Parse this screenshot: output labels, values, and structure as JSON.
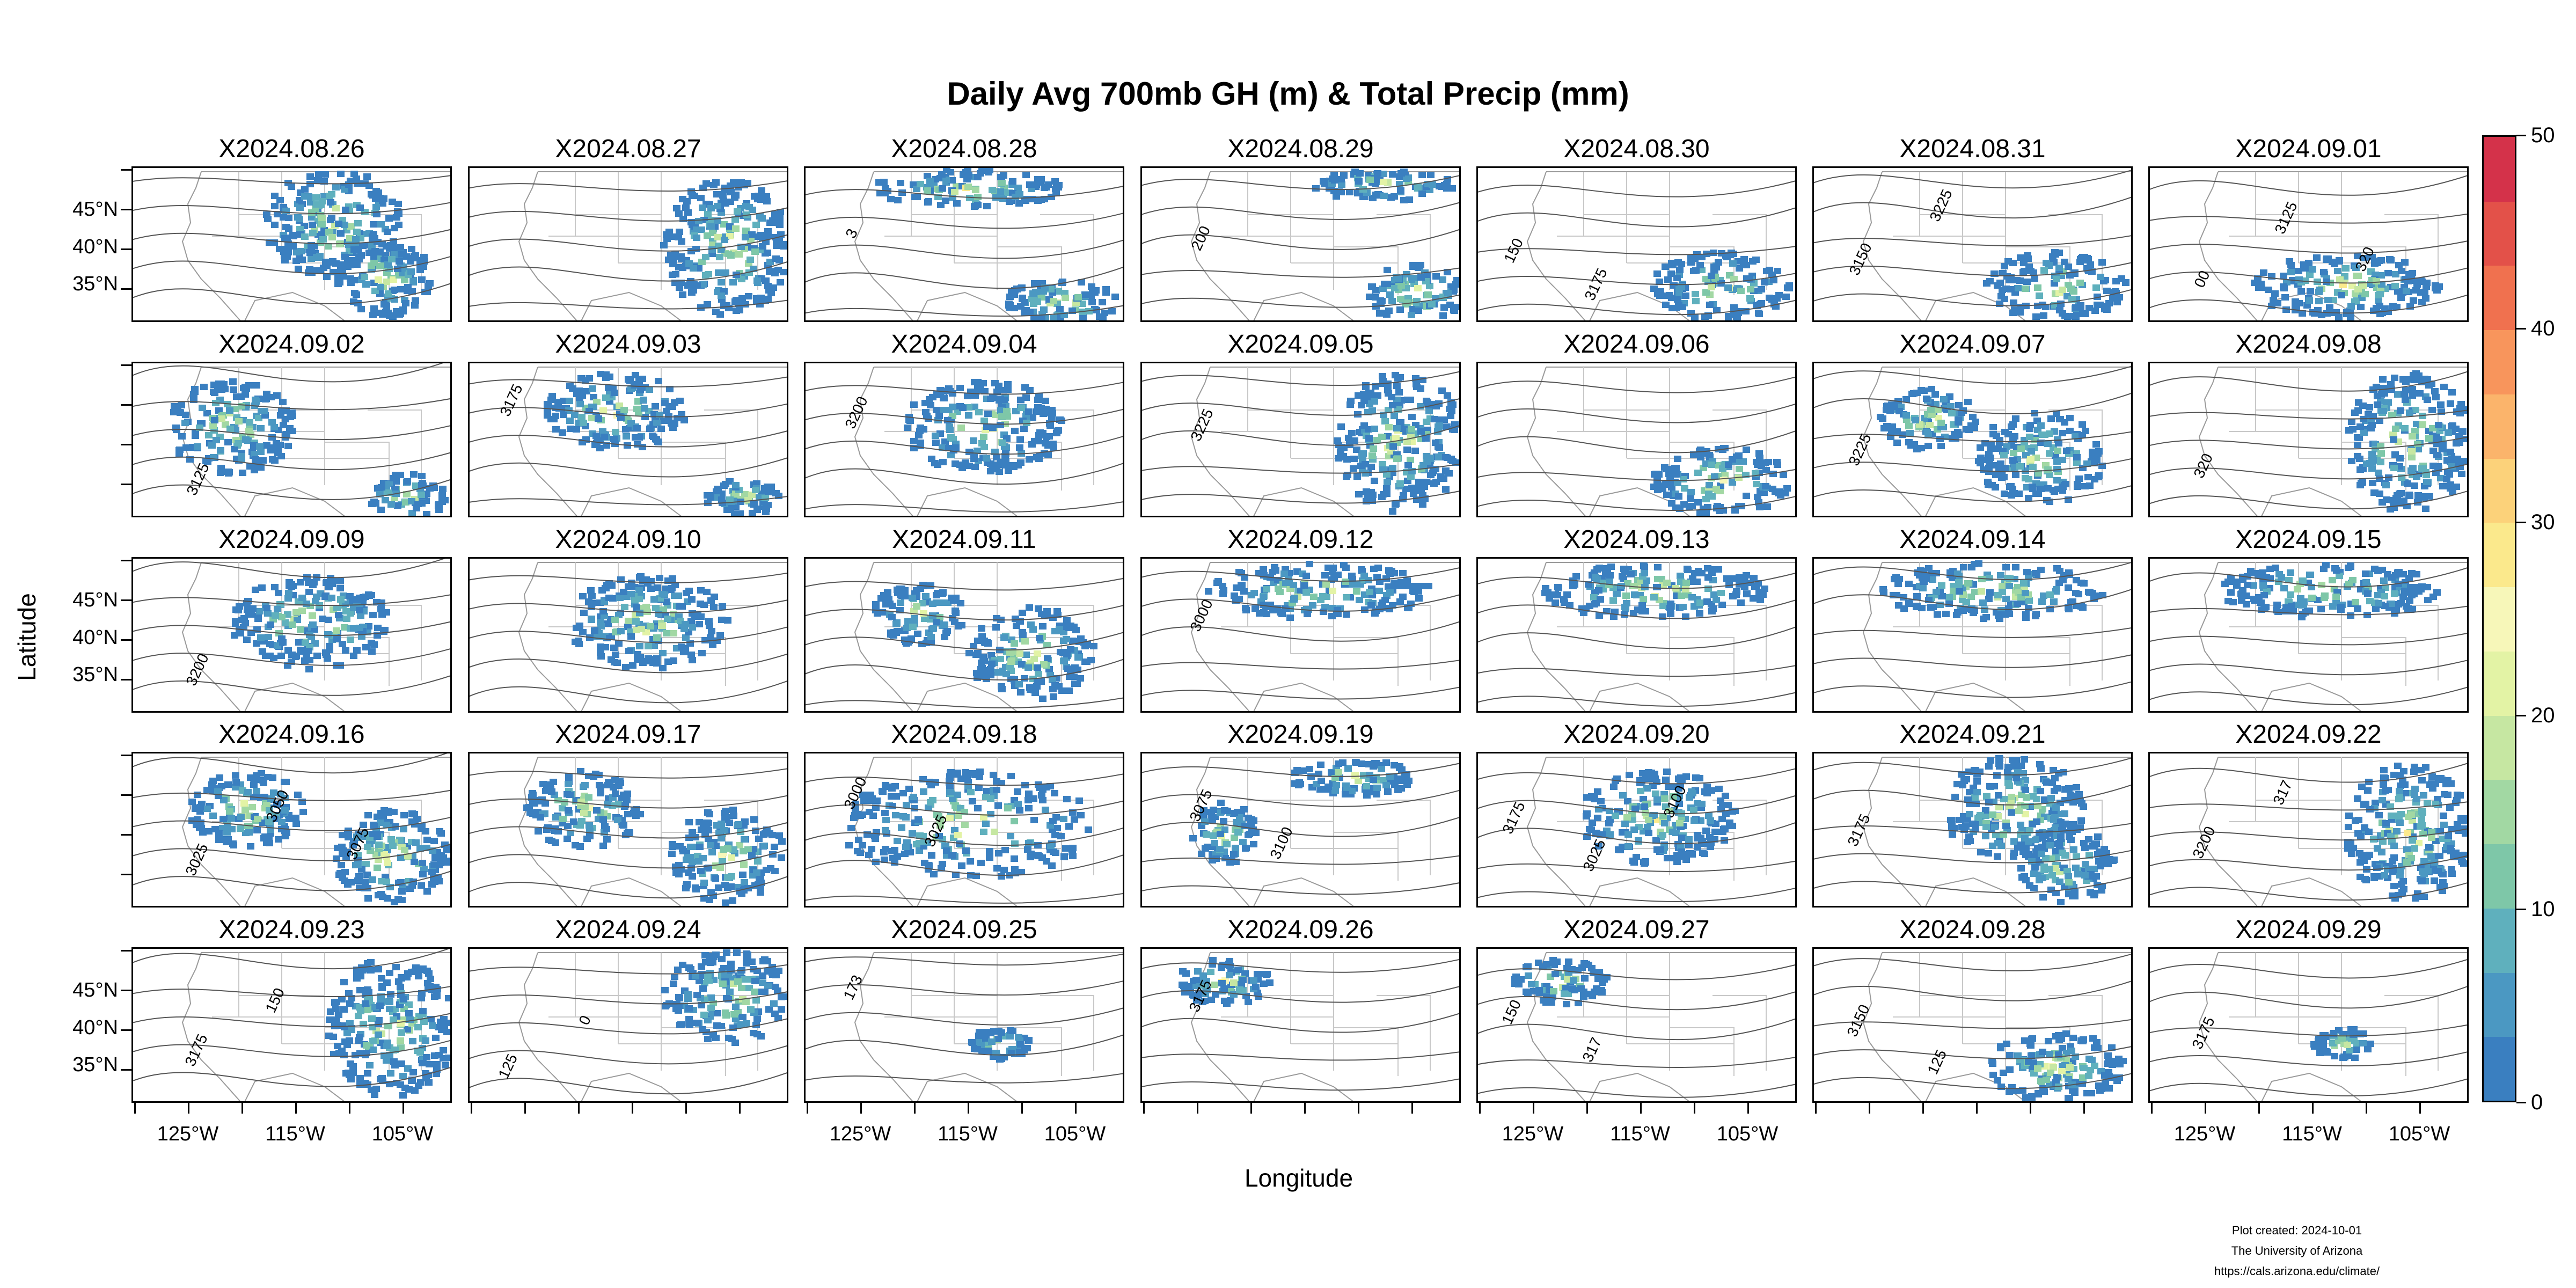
{
  "title": "Daily Avg 700mb GH (m) & Total Precip (mm)",
  "axis_titles": {
    "x": "Longitude",
    "y": "Latitude"
  },
  "lat_labels": [
    "45°N",
    "40°N",
    "35°N"
  ],
  "lon_labels": [
    "125°W",
    "115°W",
    "105°W"
  ],
  "colorbar": {
    "labels": [
      "0",
      "10",
      "20",
      "30",
      "40",
      "50"
    ],
    "range": [
      0,
      50
    ],
    "colors": [
      "#3a7fc0",
      "#4b98c2",
      "#5fb0bd",
      "#7ec7a8",
      "#a2d8a3",
      "#c6e7a2",
      "#e3f3a5",
      "#f7f7b9",
      "#fbe98c",
      "#fcd27a",
      "#fbb46b",
      "#f8955c",
      "#f0714f",
      "#e35149",
      "#d4324a"
    ]
  },
  "panels": [
    {
      "date": "X2024.08.26",
      "contours": [],
      "precip": "central-east"
    },
    {
      "date": "X2024.08.27",
      "contours": [],
      "precip": "east"
    },
    {
      "date": "X2024.08.28",
      "contours": [
        "3"
      ],
      "precip": "north-south"
    },
    {
      "date": "X2024.08.29",
      "contours": [
        "200"
      ],
      "precip": "north-southeast"
    },
    {
      "date": "X2024.08.30",
      "contours": [
        "150",
        "3175"
      ],
      "precip": "southeast"
    },
    {
      "date": "X2024.08.31",
      "contours": [
        "3150",
        "3225"
      ],
      "precip": "southeast"
    },
    {
      "date": "X2024.09.01",
      "contours": [
        "00",
        "3125",
        "320"
      ],
      "precip": "south"
    },
    {
      "date": "X2024.09.02",
      "contours": [
        "3125"
      ],
      "precip": "west-south"
    },
    {
      "date": "X2024.09.03",
      "contours": [
        "3175"
      ],
      "precip": "north-central"
    },
    {
      "date": "X2024.09.04",
      "contours": [
        "3200"
      ],
      "precip": "central"
    },
    {
      "date": "X2024.09.05",
      "contours": [
        "3225"
      ],
      "precip": "east"
    },
    {
      "date": "X2024.09.06",
      "contours": [],
      "precip": "southeast"
    },
    {
      "date": "X2024.09.07",
      "contours": [
        "3225"
      ],
      "precip": "scattered"
    },
    {
      "date": "X2024.09.08",
      "contours": [
        "320"
      ],
      "precip": "east"
    },
    {
      "date": "X2024.09.09",
      "contours": [
        "3200"
      ],
      "precip": "central"
    },
    {
      "date": "X2024.09.10",
      "contours": [],
      "precip": "central"
    },
    {
      "date": "X2024.09.11",
      "contours": [],
      "precip": "scattered"
    },
    {
      "date": "X2024.09.12",
      "contours": [
        "3000"
      ],
      "precip": "north"
    },
    {
      "date": "X2024.09.13",
      "contours": [],
      "precip": "north"
    },
    {
      "date": "X2024.09.14",
      "contours": [],
      "precip": "north"
    },
    {
      "date": "X2024.09.15",
      "contours": [],
      "precip": "north"
    },
    {
      "date": "X2024.09.16",
      "contours": [
        "3025",
        "3050",
        "3075"
      ],
      "precip": "west-east"
    },
    {
      "date": "X2024.09.17",
      "contours": [],
      "precip": "west-east"
    },
    {
      "date": "X2024.09.18",
      "contours": [
        "3000",
        "3025"
      ],
      "precip": "widespread"
    },
    {
      "date": "X2024.09.19",
      "contours": [
        "3075",
        "3100"
      ],
      "precip": "north-west"
    },
    {
      "date": "X2024.09.20",
      "contours": [
        "3175",
        "3025",
        "3100"
      ],
      "precip": "central"
    },
    {
      "date": "X2024.09.21",
      "contours": [
        "3175"
      ],
      "precip": "central-east"
    },
    {
      "date": "X2024.09.22",
      "contours": [
        "3200",
        "317"
      ],
      "precip": "east"
    },
    {
      "date": "X2024.09.23",
      "contours": [
        "3175",
        "150"
      ],
      "precip": "east"
    },
    {
      "date": "X2024.09.24",
      "contours": [
        "125",
        "0"
      ],
      "precip": "northeast"
    },
    {
      "date": "X2024.09.25",
      "contours": [
        "173"
      ],
      "precip": "sparse"
    },
    {
      "date": "X2024.09.26",
      "contours": [
        "3175"
      ],
      "precip": "northwest"
    },
    {
      "date": "X2024.09.27",
      "contours": [
        "150",
        "317"
      ],
      "precip": "northwest"
    },
    {
      "date": "X2024.09.28",
      "contours": [
        "3150",
        "125"
      ],
      "precip": "southeast"
    },
    {
      "date": "X2024.09.29",
      "contours": [
        "3175"
      ],
      "precip": "sparse"
    }
  ],
  "credits": {
    "line1": "Plot created: 2024-10-01",
    "line2": "The University of Arizona",
    "line3": "https://cals.arizona.edu/climate/"
  }
}
